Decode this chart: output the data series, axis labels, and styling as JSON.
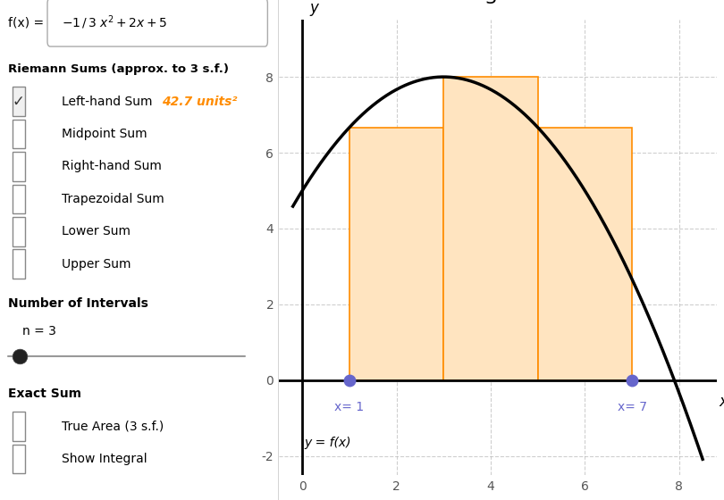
{
  "xlim": [
    -0.5,
    8.8
  ],
  "ylim": [
    -2.5,
    9.5
  ],
  "xticks": [
    0,
    2,
    4,
    6,
    8
  ],
  "yticks": [
    -2,
    0,
    2,
    4,
    6,
    8
  ],
  "x_label": "x",
  "y_label": "y",
  "rect_color_fill": "#FFE4C0",
  "rect_color_edge": "#FF8C00",
  "curve_color": "#000000",
  "curve_lw": 2.5,
  "point_color": "#6666CC",
  "point_size": 9,
  "x_start": 1,
  "x_end": 7,
  "n_intervals": 3,
  "grid_color": "#BBBBBB",
  "grid_style": "--",
  "grid_alpha": 0.7,
  "background_color": "#FFFFFF",
  "axis_color": "#000000",
  "tick_color": "#555555",
  "annotation_color": "#6666CC",
  "func_label": "y = f(x)",
  "riemann_label": "Riemann Sums (approx. to 3 s.f.)",
  "checked_item": "Left-hand Sum",
  "checked_value": "42.7 units",
  "unchecked_items": [
    "Midpoint Sum",
    "Right-hand Sum",
    "Trapezoidal Sum",
    "Lower Sum",
    "Upper Sum"
  ],
  "intervals_label": "Number of Intervals",
  "n_label": "n = 3",
  "exact_label": "Exact Sum",
  "exact_items": [
    "True Area (3 s.f.)",
    "Show Integral"
  ]
}
